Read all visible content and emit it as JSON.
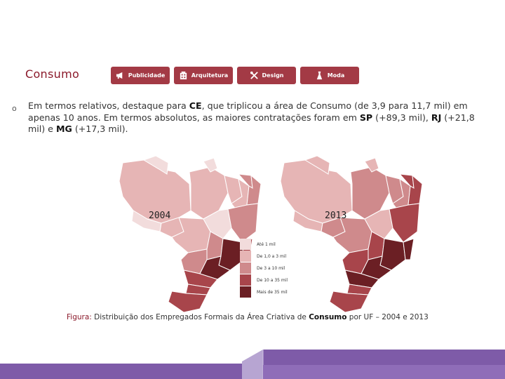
{
  "header": {
    "title": "Consumo",
    "tabs": [
      {
        "label": "Publicidade",
        "icon": "megaphone-icon"
      },
      {
        "label": "Arquitetura",
        "icon": "building-icon"
      },
      {
        "label": "Design",
        "icon": "tools-icon"
      },
      {
        "label": "Moda",
        "icon": "dress-icon"
      }
    ]
  },
  "body": {
    "bullet": "o",
    "text_1": "Em termos relativos, destaque para ",
    "state_ce": "CE",
    "text_2": ", que triplicou a área de Consumo (de 3,9 para 11,7 mil) em apenas 10 anos. Em termos absolutos, as maiores contratações foram em ",
    "state_sp": "SP",
    "text_3": " (+89,3 mil), ",
    "state_rj": "RJ",
    "text_4": " (+21,8 mil) e ",
    "state_mg": "MG",
    "text_5": " (+17,3 mil)."
  },
  "maps": {
    "left_year": "2004",
    "right_year": "2013"
  },
  "legend": {
    "items": [
      {
        "label": "Até 1 mil",
        "color": "#f2dcdc"
      },
      {
        "label": "De 1,0 a 3 mil",
        "color": "#e6b5b5"
      },
      {
        "label": "De 3 a 10 mil",
        "color": "#cf8a8c"
      },
      {
        "label": "De 10 a 35 mil",
        "color": "#a8454b"
      },
      {
        "label": "Mais de 35 mil",
        "color": "#6b1f24"
      }
    ]
  },
  "caption": {
    "label": "Figura:",
    "text_1": " Distribuição dos Empregados Formais da Área Criativa de ",
    "bold": "Consumo",
    "text_2": " por UF – 2004 e 2013"
  },
  "colors": {
    "accent": "#8b1a2b",
    "tab_bg": "#a33a45",
    "footer_purple": "#7e5ba8"
  }
}
